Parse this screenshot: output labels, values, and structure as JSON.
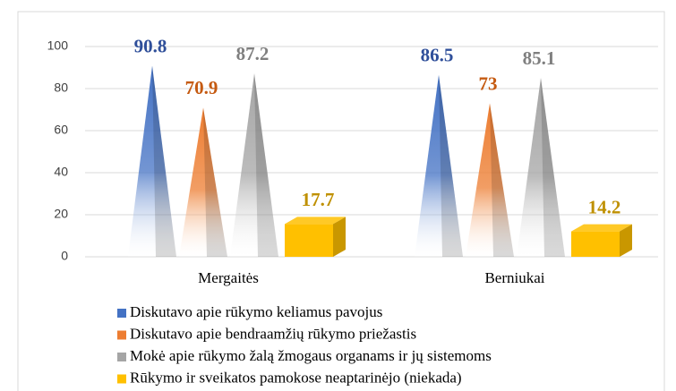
{
  "chart_data": {
    "type": "bar",
    "categories": [
      "Mergaitės",
      "Berniukai"
    ],
    "series": [
      {
        "name": "Diskutavo apie rūkymo keliamus pavojus",
        "color": "#4472c4",
        "label_color": "#2f4f9a",
        "values": [
          90.8,
          86.5
        ]
      },
      {
        "name": "Diskutavo apie bendraamžių rūkymo priežastis",
        "color": "#ed7d31",
        "label_color": "#c55a11",
        "values": [
          70.9,
          73
        ]
      },
      {
        "name": "Mokė apie rūkymo žalą žmogaus organams ir jų sistemoms",
        "color": "#a5a5a5",
        "label_color": "#7f7f7f",
        "values": [
          87.2,
          85.1
        ]
      },
      {
        "name": "Rūkymo ir sveikatos pamokose neaptarinėjo (niekada)",
        "color": "#ffc000",
        "label_color": "#bf9000",
        "values": [
          17.7,
          14.2
        ]
      }
    ],
    "ylim": [
      0,
      100
    ],
    "yticks": [
      0,
      20,
      40,
      60,
      80,
      100
    ],
    "grid": true,
    "legend": "bottom"
  }
}
